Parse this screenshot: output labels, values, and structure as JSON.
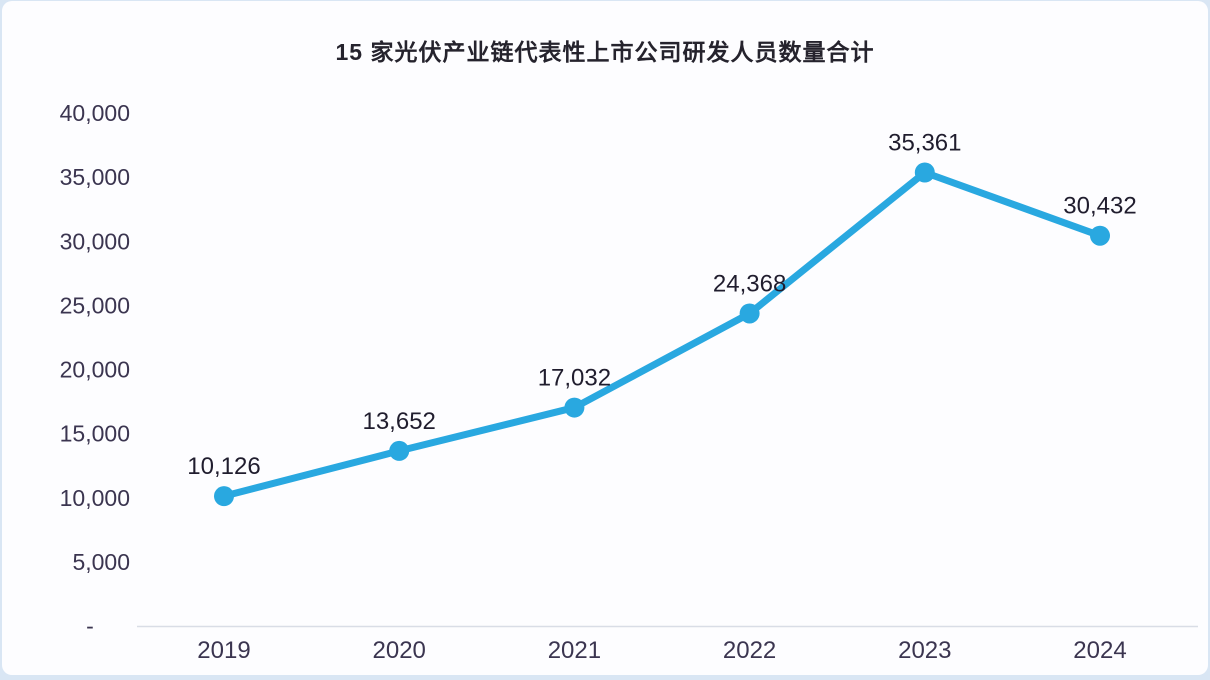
{
  "page": {
    "background_color": "#d9e6f4",
    "card_background_color": "#fdfdff"
  },
  "chart_data": {
    "type": "line",
    "title": "15 家光伏产业链代表性上市公司研发人员数量合计",
    "x": [
      "2019",
      "2020",
      "2021",
      "2022",
      "2023",
      "2024"
    ],
    "values": [
      10126,
      13652,
      17032,
      24368,
      35361,
      30432
    ],
    "data_labels": [
      "10,126",
      "13,652",
      "17,032",
      "24,368",
      "35,361",
      "30,432"
    ],
    "y_ticks": [
      {
        "value": 40000,
        "label": "40,000"
      },
      {
        "value": 35000,
        "label": "35,000"
      },
      {
        "value": 30000,
        "label": "30,000"
      },
      {
        "value": 25000,
        "label": "25,000"
      },
      {
        "value": 20000,
        "label": "20,000"
      },
      {
        "value": 15000,
        "label": "15,000"
      },
      {
        "value": 10000,
        "label": "10,000"
      },
      {
        "value": 5000,
        "label": "5,000"
      },
      {
        "value": 0,
        "label": "-"
      }
    ],
    "ylim": [
      0,
      40000
    ],
    "xlabel": "",
    "ylabel": "",
    "grid": "off",
    "legend": "none",
    "line_color": "#29a8e0",
    "marker_color": "#29a8e0",
    "axis_line_color": "#d9dde6",
    "tick_text_color": "#3b3550",
    "data_label_color": "#201d2e",
    "title_color": "#25232d"
  }
}
